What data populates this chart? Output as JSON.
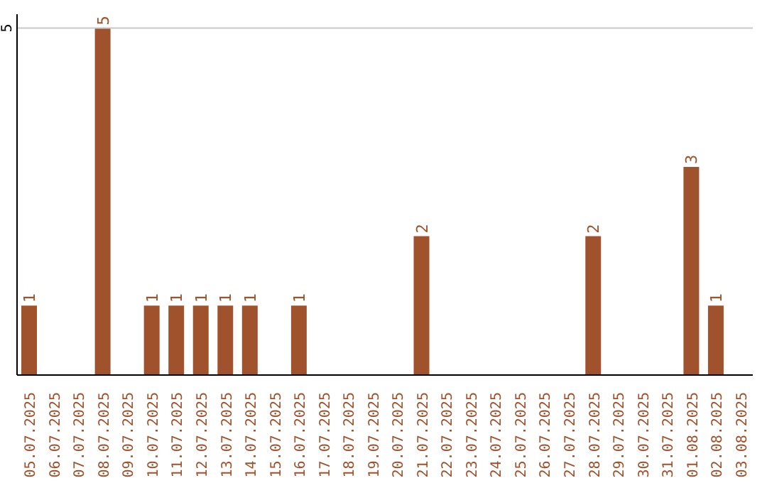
{
  "chart_data": {
    "type": "bar",
    "categories": [
      "05.07.2025",
      "06.07.2025",
      "07.07.2025",
      "08.07.2025",
      "09.07.2025",
      "10.07.2025",
      "11.07.2025",
      "12.07.2025",
      "13.07.2025",
      "14.07.2025",
      "15.07.2025",
      "16.07.2025",
      "17.07.2025",
      "18.07.2025",
      "19.07.2025",
      "20.07.2025",
      "21.07.2025",
      "22.07.2025",
      "23.07.2025",
      "24.07.2025",
      "25.07.2025",
      "26.07.2025",
      "27.07.2025",
      "28.07.2025",
      "29.07.2025",
      "30.07.2025",
      "31.07.2025",
      "01.08.2025",
      "02.08.2025",
      "03.08.2025"
    ],
    "values": [
      1,
      0,
      0,
      5,
      0,
      1,
      1,
      1,
      1,
      1,
      0,
      1,
      0,
      0,
      0,
      0,
      2,
      0,
      0,
      0,
      0,
      0,
      0,
      2,
      0,
      0,
      0,
      3,
      1,
      0
    ],
    "value_labels": [
      "1",
      null,
      null,
      "5",
      null,
      "1",
      "1",
      "1",
      "1",
      "1",
      null,
      "1",
      null,
      null,
      null,
      null,
      "2",
      null,
      null,
      null,
      null,
      null,
      null,
      "2",
      null,
      null,
      null,
      "3",
      "1",
      null
    ],
    "color": "#a0522d",
    "ylim": [
      0,
      5.2
    ],
    "yticks": [
      5
    ],
    "grid": "y"
  }
}
